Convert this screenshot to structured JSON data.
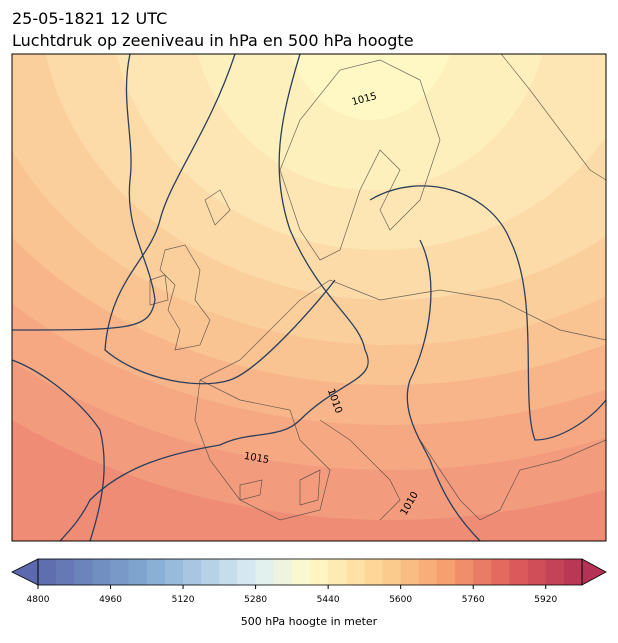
{
  "header": {
    "title": "25-05-1821 12 UTC",
    "subtitle": "Luchtdruk op zeeniveau in hPa en 500 hPa hoogte"
  },
  "map": {
    "isobar_labels": [
      "1015",
      "1015",
      "1010",
      "1010"
    ]
  },
  "colorbar": {
    "label": "500 hPa hoogte in meter",
    "lim": [
      4800,
      6000
    ],
    "step": 40,
    "ticks": [
      4800,
      4960,
      5120,
      5280,
      5440,
      5600,
      5760,
      5920
    ]
  }
}
